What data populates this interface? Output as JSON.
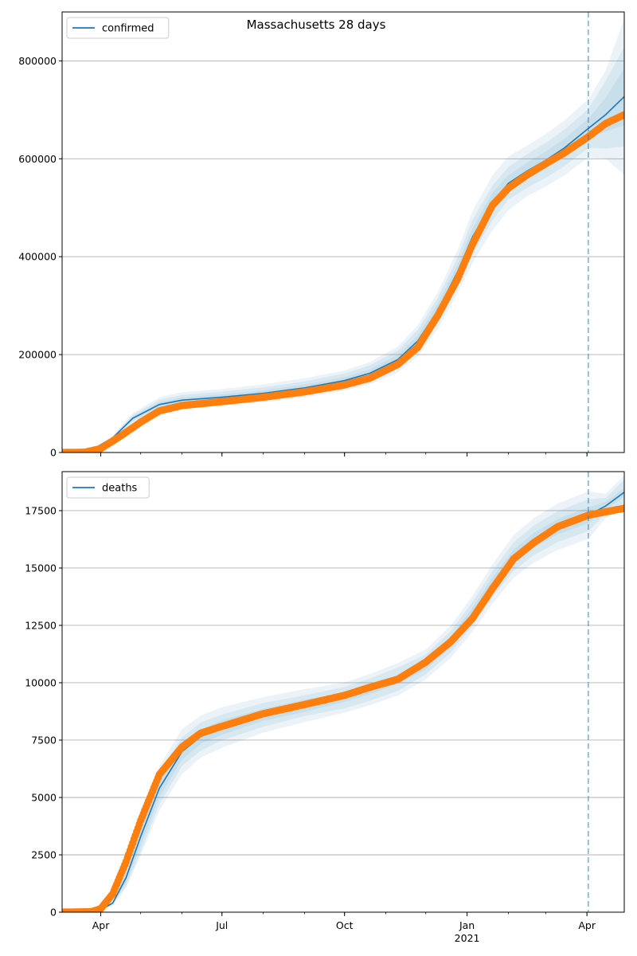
{
  "chart_data": {
    "title": "Massachusetts 28 days",
    "x_ticks": [
      {
        "date": "2020-04-01",
        "label": "Apr",
        "sublabel": ""
      },
      {
        "date": "2020-07-01",
        "label": "Jul",
        "sublabel": ""
      },
      {
        "date": "2020-10-01",
        "label": "Oct",
        "sublabel": ""
      },
      {
        "date": "2021-01-01",
        "label": "Jan",
        "sublabel": "2021"
      },
      {
        "date": "2021-04-01",
        "label": "Apr",
        "sublabel": ""
      }
    ],
    "x_range": [
      "2020-03-03",
      "2021-04-29"
    ],
    "forecast_start": "2021-04-02",
    "colors": {
      "line": "#1f77b4",
      "band": "#1f77b4",
      "observed": "#ff7f0e",
      "vline": "#1f77b4",
      "grid": "#b0b0b0"
    },
    "grid": "horizontal",
    "charts": [
      {
        "type": "line",
        "legend": "confirmed",
        "legend_position": "top-left",
        "ylim": [
          0,
          900000
        ],
        "y_ticks": [
          "0",
          "200000",
          "400000",
          "600000",
          "800000"
        ],
        "y_tick_values": [
          0,
          200000,
          400000,
          600000,
          800000
        ],
        "fitted": [
          [
            "2020-03-03",
            0
          ],
          [
            "2020-03-25",
            5000
          ],
          [
            "2020-04-10",
            30000
          ],
          [
            "2020-04-25",
            70000
          ],
          [
            "2020-05-15",
            98000
          ],
          [
            "2020-06-01",
            107000
          ],
          [
            "2020-07-01",
            113000
          ],
          [
            "2020-08-01",
            121000
          ],
          [
            "2020-09-01",
            132000
          ],
          [
            "2020-10-01",
            147000
          ],
          [
            "2020-10-20",
            162000
          ],
          [
            "2020-11-10",
            190000
          ],
          [
            "2020-11-25",
            228000
          ],
          [
            "2020-12-10",
            290000
          ],
          [
            "2020-12-25",
            370000
          ],
          [
            "2021-01-05",
            440000
          ],
          [
            "2021-01-20",
            510000
          ],
          [
            "2021-02-01",
            550000
          ],
          [
            "2021-02-15",
            575000
          ],
          [
            "2021-03-01",
            597000
          ],
          [
            "2021-03-15",
            622000
          ],
          [
            "2021-04-02",
            662000
          ],
          [
            "2021-04-15",
            690000
          ],
          [
            "2021-04-29",
            727000
          ]
        ],
        "band_widths": [
          [
            0.02,
            0.05,
            0.09
          ],
          [
            0.02,
            0.05,
            0.09
          ],
          [
            0.05,
            0.1,
            0.16
          ],
          [
            0.05,
            0.1,
            0.15
          ],
          [
            0.05,
            0.1,
            0.15
          ],
          [
            0.05,
            0.1,
            0.15
          ],
          [
            0.05,
            0.1,
            0.15
          ],
          [
            0.05,
            0.1,
            0.15
          ],
          [
            0.05,
            0.1,
            0.15
          ],
          [
            0.05,
            0.1,
            0.14
          ],
          [
            0.05,
            0.1,
            0.14
          ],
          [
            0.05,
            0.1,
            0.14
          ],
          [
            0.05,
            0.1,
            0.14
          ],
          [
            0.05,
            0.09,
            0.13
          ],
          [
            0.04,
            0.08,
            0.12
          ],
          [
            0.04,
            0.08,
            0.12
          ],
          [
            0.04,
            0.07,
            0.11
          ],
          [
            0.03,
            0.06,
            0.1
          ],
          [
            0.03,
            0.06,
            0.09
          ],
          [
            0.03,
            0.06,
            0.09
          ],
          [
            0.03,
            0.06,
            0.09
          ],
          [
            0.03,
            0.06,
            0.09
          ],
          [
            0.05,
            0.1,
            0.13
          ],
          [
            0.08,
            0.14,
            0.22
          ]
        ],
        "observed": [
          [
            "2020-03-03",
            0
          ],
          [
            "2020-03-20",
            500
          ],
          [
            "2020-04-01",
            8000
          ],
          [
            "2020-04-15",
            32000
          ],
          [
            "2020-05-01",
            62000
          ],
          [
            "2020-05-15",
            85000
          ],
          [
            "2020-06-01",
            96000
          ],
          [
            "2020-07-01",
            104000
          ],
          [
            "2020-08-01",
            113000
          ],
          [
            "2020-09-01",
            124000
          ],
          [
            "2020-10-01",
            138000
          ],
          [
            "2020-10-20",
            152000
          ],
          [
            "2020-11-10",
            180000
          ],
          [
            "2020-11-25",
            215000
          ],
          [
            "2020-12-10",
            280000
          ],
          [
            "2020-12-25",
            355000
          ],
          [
            "2021-01-05",
            425000
          ],
          [
            "2021-01-20",
            505000
          ],
          [
            "2021-02-01",
            540000
          ],
          [
            "2021-02-15",
            567000
          ],
          [
            "2021-03-01",
            590000
          ],
          [
            "2021-03-15",
            612000
          ],
          [
            "2021-04-02",
            645000
          ],
          [
            "2021-04-15",
            672000
          ],
          [
            "2021-04-29",
            690000
          ]
        ]
      },
      {
        "type": "line",
        "legend": "deaths",
        "legend_position": "top-left",
        "ylim": [
          0,
          19200
        ],
        "y_ticks": [
          "0",
          "2500",
          "5000",
          "7500",
          "10000",
          "12500",
          "15000",
          "17500"
        ],
        "y_tick_values": [
          0,
          2500,
          5000,
          7500,
          10000,
          12500,
          15000,
          17500
        ],
        "fitted": [
          [
            "2020-03-03",
            0
          ],
          [
            "2020-04-01",
            100
          ],
          [
            "2020-04-10",
            400
          ],
          [
            "2020-04-20",
            1500
          ],
          [
            "2020-05-01",
            3300
          ],
          [
            "2020-05-15",
            5400
          ],
          [
            "2020-06-01",
            7000
          ],
          [
            "2020-06-15",
            7650
          ],
          [
            "2020-07-01",
            8050
          ],
          [
            "2020-08-01",
            8600
          ],
          [
            "2020-09-01",
            9000
          ],
          [
            "2020-10-01",
            9350
          ],
          [
            "2020-10-20",
            9700
          ],
          [
            "2020-11-10",
            10150
          ],
          [
            "2020-12-01",
            10800
          ],
          [
            "2020-12-20",
            11800
          ],
          [
            "2021-01-05",
            13000
          ],
          [
            "2021-01-20",
            14300
          ],
          [
            "2021-02-05",
            15500
          ],
          [
            "2021-02-20",
            16200
          ],
          [
            "2021-03-10",
            16800
          ],
          [
            "2021-04-02",
            17300
          ],
          [
            "2021-04-15",
            17700
          ],
          [
            "2021-04-29",
            18300
          ]
        ],
        "band_widths": [
          [
            0.05,
            0.1,
            0.15
          ],
          [
            0.05,
            0.1,
            0.15
          ],
          [
            0.1,
            0.2,
            0.3
          ],
          [
            0.15,
            0.25,
            0.3
          ],
          [
            0.12,
            0.2,
            0.25
          ],
          [
            0.07,
            0.13,
            0.18
          ],
          [
            0.05,
            0.09,
            0.14
          ],
          [
            0.04,
            0.08,
            0.12
          ],
          [
            0.04,
            0.07,
            0.11
          ],
          [
            0.03,
            0.06,
            0.09
          ],
          [
            0.03,
            0.05,
            0.08
          ],
          [
            0.02,
            0.05,
            0.07
          ],
          [
            0.02,
            0.05,
            0.07
          ],
          [
            0.02,
            0.05,
            0.07
          ],
          [
            0.02,
            0.04,
            0.06
          ],
          [
            0.02,
            0.04,
            0.06
          ],
          [
            0.02,
            0.04,
            0.06
          ],
          [
            0.02,
            0.04,
            0.06
          ],
          [
            0.02,
            0.04,
            0.06
          ],
          [
            0.02,
            0.04,
            0.06
          ],
          [
            0.02,
            0.04,
            0.06
          ],
          [
            0.02,
            0.04,
            0.06
          ],
          [
            0.01,
            0.02,
            0.03
          ],
          [
            0.01,
            0.03,
            0.04
          ]
        ],
        "observed": [
          [
            "2020-03-03",
            0
          ],
          [
            "2020-03-25",
            20
          ],
          [
            "2020-04-01",
            150
          ],
          [
            "2020-04-10",
            800
          ],
          [
            "2020-04-20",
            2200
          ],
          [
            "2020-05-01",
            4000
          ],
          [
            "2020-05-15",
            6000
          ],
          [
            "2020-06-01",
            7200
          ],
          [
            "2020-06-15",
            7800
          ],
          [
            "2020-07-01",
            8100
          ],
          [
            "2020-08-01",
            8650
          ],
          [
            "2020-09-01",
            9050
          ],
          [
            "2020-10-01",
            9450
          ],
          [
            "2020-10-20",
            9800
          ],
          [
            "2020-11-10",
            10150
          ],
          [
            "2020-12-01",
            10900
          ],
          [
            "2020-12-20",
            11800
          ],
          [
            "2021-01-05",
            12800
          ],
          [
            "2021-01-20",
            14100
          ],
          [
            "2021-02-05",
            15400
          ],
          [
            "2021-02-20",
            16100
          ],
          [
            "2021-03-10",
            16800
          ],
          [
            "2021-04-02",
            17300
          ],
          [
            "2021-04-15",
            17450
          ],
          [
            "2021-04-29",
            17600
          ]
        ]
      }
    ]
  }
}
